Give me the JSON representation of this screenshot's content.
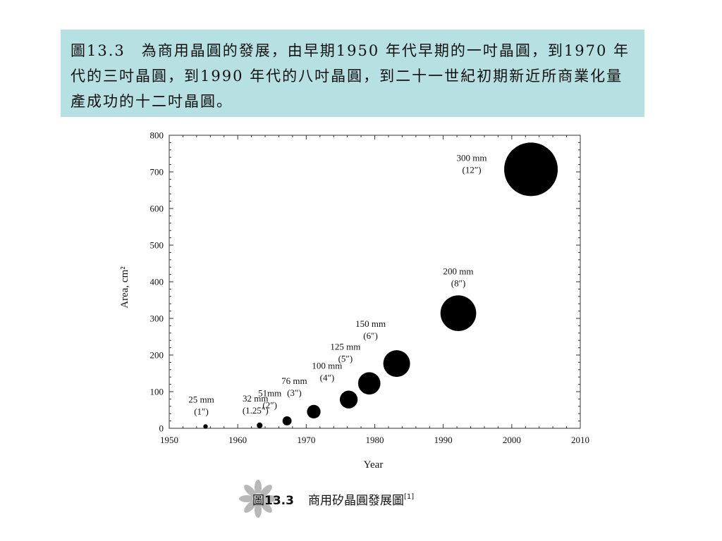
{
  "caption": "圖13.3　為商用晶圓的發展，由早期1950 年代早期的一吋晶圓，到1970 年代的三吋晶圓，到1990 年代的八吋晶圓，到二十一世紀初期新近所商業化量產成功的十二吋晶圓。",
  "figure_caption": {
    "label": "圖",
    "number": "13.3",
    "text": "商用矽晶圓發展圖",
    "ref": "[1]"
  },
  "chart_data": {
    "type": "scatter",
    "xlabel": "Year",
    "ylabel": "Area, cm²",
    "xlim": [
      1950,
      2010
    ],
    "ylim": [
      0,
      800
    ],
    "x_ticks": [
      1950,
      1960,
      1970,
      1980,
      1990,
      2000,
      2010
    ],
    "y_ticks": [
      0,
      100,
      200,
      300,
      400,
      500,
      600,
      700,
      800
    ],
    "grid": false,
    "colors": {
      "marker": "#000000",
      "axis": "#333333"
    },
    "points": [
      {
        "x": 1955.3,
        "y": 4.9,
        "label": [
          "25 mm",
          "(1″)"
        ]
      },
      {
        "x": 1963.2,
        "y": 8.0,
        "label": [
          "32 mm",
          "(1.25″)"
        ]
      },
      {
        "x": 1967.2,
        "y": 20.3,
        "label": [
          "51mm",
          "(2″)"
        ]
      },
      {
        "x": 1971.1,
        "y": 45.4,
        "label": [
          "76 mm",
          "(3″)"
        ]
      },
      {
        "x": 1976.2,
        "y": 78.5,
        "label": [
          "100 mm",
          "(4″)"
        ]
      },
      {
        "x": 1979.2,
        "y": 122.7,
        "label": [
          "125 mm",
          "(5″)"
        ]
      },
      {
        "x": 1983.2,
        "y": 176.7,
        "label": [
          "150 mm",
          "(6″)"
        ]
      },
      {
        "x": 1992.2,
        "y": 314.2,
        "label": [
          "200 mm",
          "(8″)"
        ]
      },
      {
        "x": 2002.8,
        "y": 706.9,
        "label": [
          "300 mm",
          "(12″)"
        ]
      }
    ]
  }
}
